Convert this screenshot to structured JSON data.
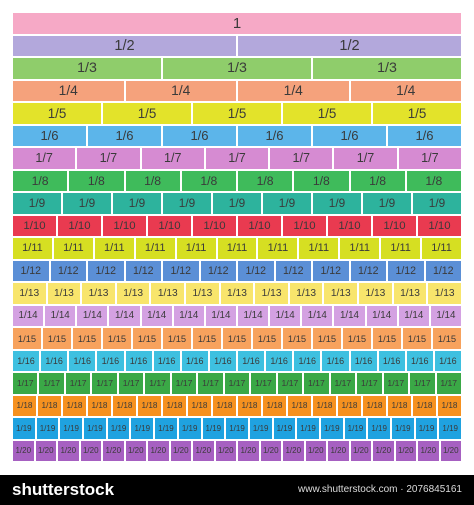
{
  "rows": [
    {
      "label": "1",
      "color": "#f6a9c6"
    },
    {
      "label": "1/2",
      "color": "#b3a8dc"
    },
    {
      "label": "1/3",
      "color": "#8fcd6b"
    },
    {
      "label": "1/4",
      "color": "#f5a27c"
    },
    {
      "label": "1/5",
      "color": "#e3e32a"
    },
    {
      "label": "1/6",
      "color": "#5cb5ea"
    },
    {
      "label": "1/7",
      "color": "#d68bd2"
    },
    {
      "label": "1/8",
      "color": "#3fbb5b"
    },
    {
      "label": "1/9",
      "color": "#2db39d"
    },
    {
      "label": "1/10",
      "color": "#e93a50"
    },
    {
      "label": "1/11",
      "color": "#d6df22"
    },
    {
      "label": "1/12",
      "color": "#5b8fd6"
    },
    {
      "label": "1/13",
      "color": "#f8e56c"
    },
    {
      "label": "1/14",
      "color": "#d4a1e2"
    },
    {
      "label": "1/15",
      "color": "#f7a25d"
    },
    {
      "label": "1/16",
      "color": "#3ec0e0"
    },
    {
      "label": "1/17",
      "color": "#3aa846"
    },
    {
      "label": "1/18",
      "color": "#f6911f"
    },
    {
      "label": "1/19",
      "color": "#1fa2e0"
    },
    {
      "label": "1/20",
      "color": "#a660c1"
    }
  ],
  "footer": {
    "logo": "shutterstock",
    "caption": "www.shutterstock.com · 2076845161"
  }
}
